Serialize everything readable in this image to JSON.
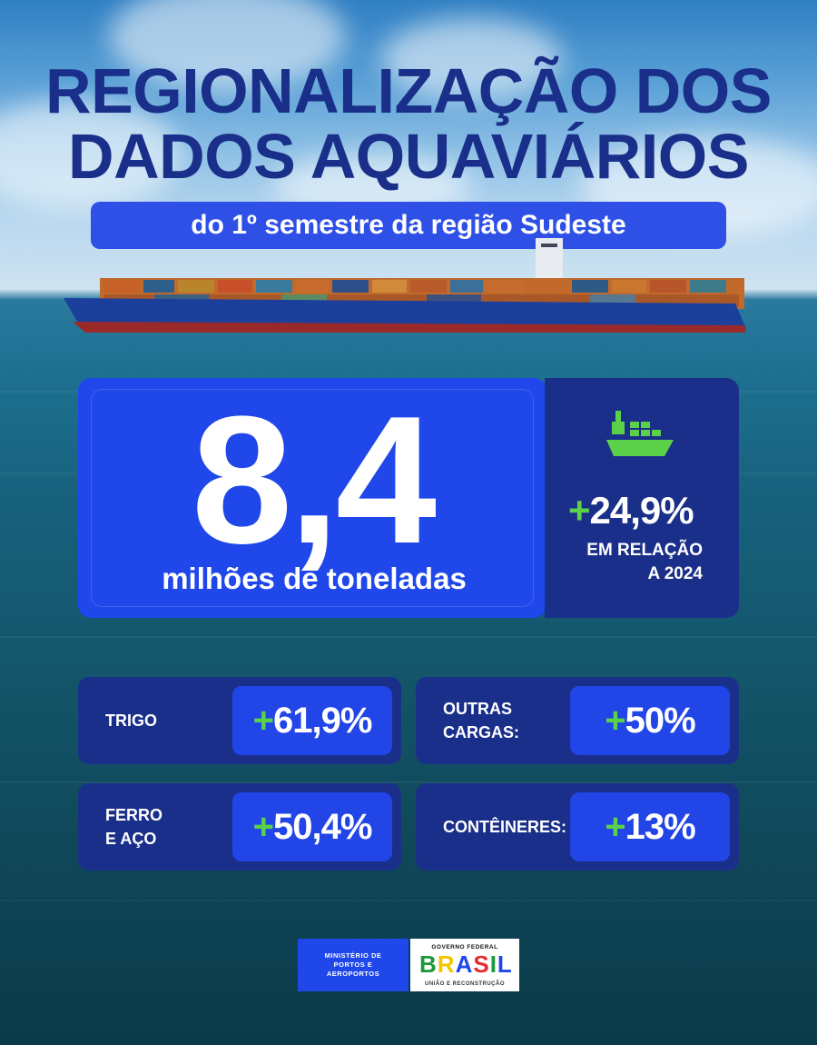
{
  "header": {
    "title_line1": "REGIONALIZAÇÃO DOS",
    "title_line2": "DADOS AQUAVIÁRIOS",
    "subtitle": "do 1º semestre da região Sudeste"
  },
  "main_stat": {
    "value": "8,4",
    "unit_label": "milhões de toneladas",
    "change_sign": "+",
    "change_value": "24,9%",
    "comparison_line1": "EM RELAÇÃO",
    "comparison_line2": "A 2024",
    "icon": "cargo-ship-icon"
  },
  "categories": [
    {
      "label_line1": "TRIGO",
      "label_line2": "",
      "sign": "+",
      "value": "61,9%"
    },
    {
      "label_line1": "OUTRAS",
      "label_line2": "CARGAS:",
      "sign": "+",
      "value": "50%"
    },
    {
      "label_line1": "FERRO",
      "label_line2": "E AÇO",
      "sign": "+",
      "value": "50,4%"
    },
    {
      "label_line1": "CONTÊINERES:",
      "label_line2": "",
      "sign": "+",
      "value": "13%"
    }
  ],
  "footer": {
    "ministry_line1": "MINISTÉRIO DE",
    "ministry_line2": "PORTOS E",
    "ministry_line3": "AEROPORTOS",
    "gov_top": "GOVERNO FEDERAL",
    "gov_name": "BRASIL",
    "gov_tagline": "UNIÃO E RECONSTRUÇÃO"
  },
  "colors": {
    "title": "#1a2f8a",
    "accent_blue": "#1f47ea",
    "navy": "#1a2f8a",
    "plus_green": "#5bd14a"
  }
}
